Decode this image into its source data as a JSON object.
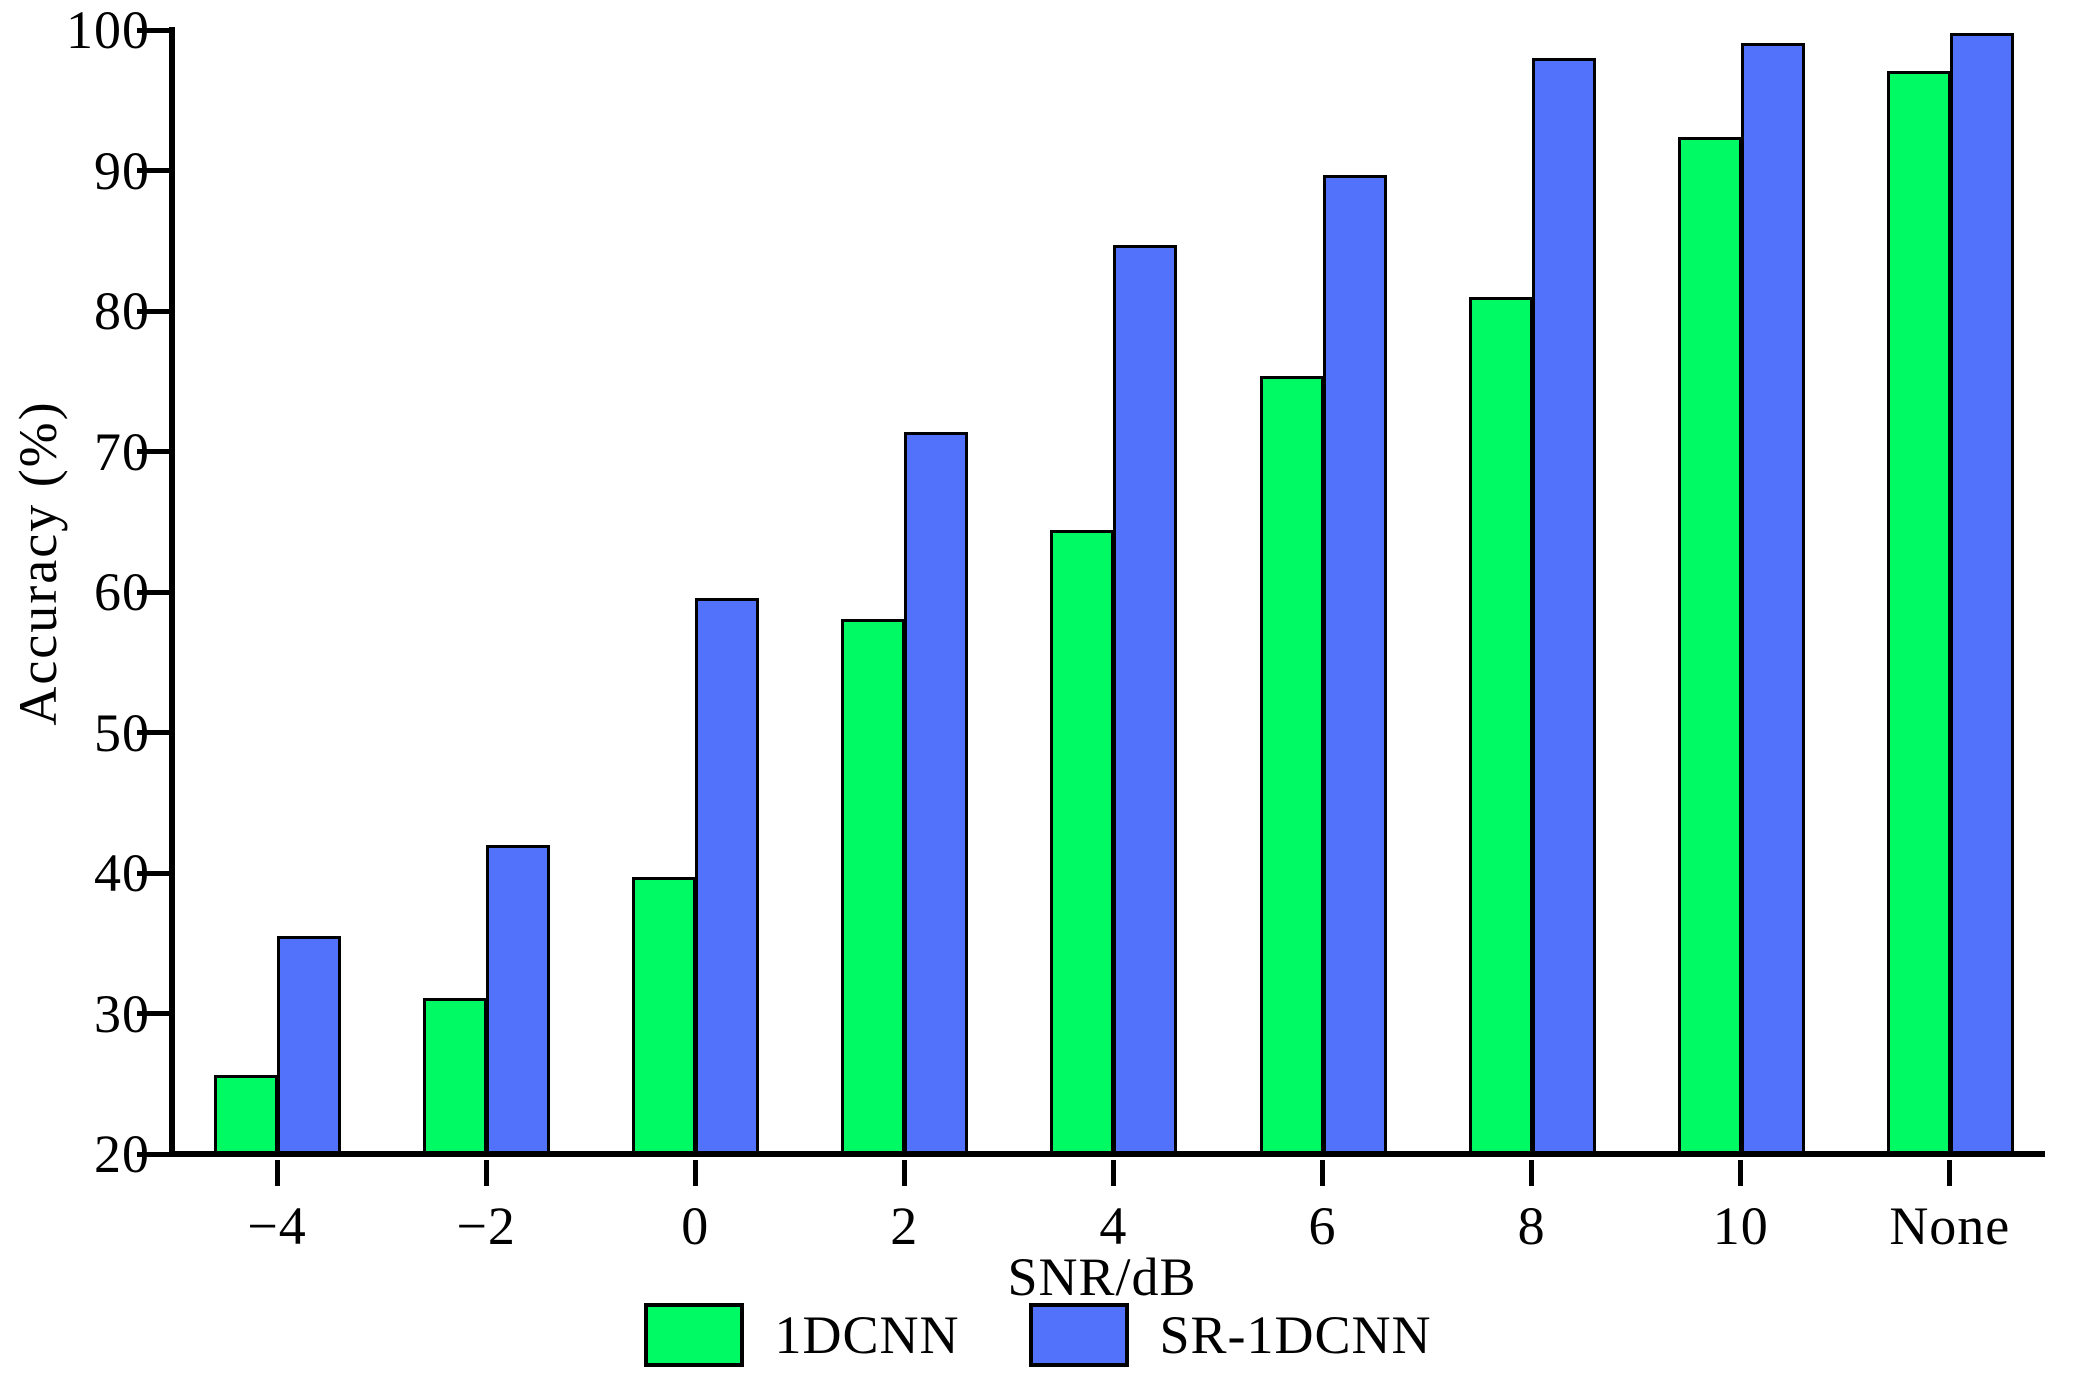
{
  "figure": {
    "background_color": "#ffffff",
    "axis_color": "#000000",
    "y_axis": {
      "title": "Accuracy (%)",
      "tick_labels": [
        "20",
        "30",
        "40",
        "50",
        "60",
        "70",
        "80",
        "90",
        "100"
      ]
    },
    "x_axis": {
      "title": "SNR/dB",
      "tick_labels": [
        "−4",
        "−2",
        "0",
        "2",
        "4",
        "6",
        "8",
        "10",
        "None"
      ]
    },
    "legend": {
      "items": [
        {
          "label": "1DCNN",
          "color": "#00FA64"
        },
        {
          "label": "SR-1DCNN",
          "color": "#5372FB"
        }
      ]
    }
  },
  "chart_data": {
    "type": "bar",
    "title": "",
    "categories": [
      "−4",
      "−2",
      "0",
      "2",
      "4",
      "6",
      "8",
      "10",
      "None"
    ],
    "series": [
      {
        "name": "1DCNN",
        "color": "#00FA64",
        "values": [
          25.6,
          31.1,
          39.7,
          58.1,
          64.4,
          75.4,
          81.0,
          92.4,
          97.1
        ]
      },
      {
        "name": "SR-1DCNN",
        "color": "#5372FB",
        "values": [
          35.5,
          42.0,
          59.6,
          71.4,
          84.7,
          89.7,
          98.0,
          99.1,
          99.8
        ]
      }
    ],
    "xlabel": "SNR/dB",
    "ylabel": "Accuracy (%)",
    "ylim": [
      20,
      100
    ],
    "yticks": [
      20,
      30,
      40,
      50,
      60,
      70,
      80,
      90,
      100
    ],
    "grid": false,
    "legend_position": "bottom",
    "bar_edge_color": "#000000"
  }
}
